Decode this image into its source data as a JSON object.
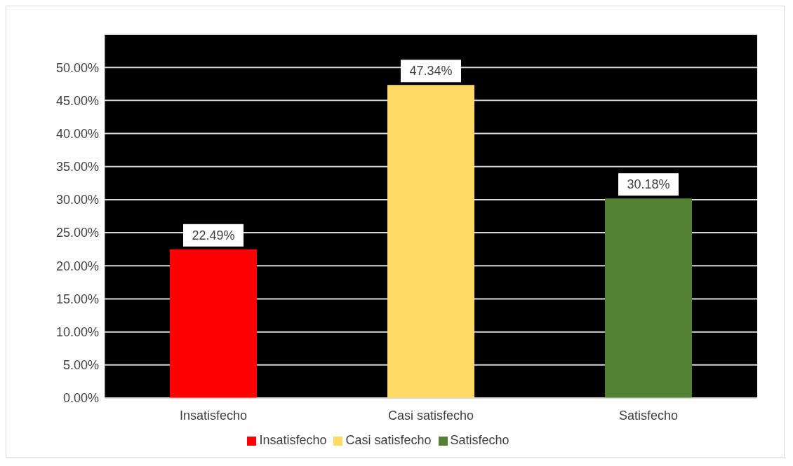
{
  "chart_data": {
    "type": "bar",
    "categories": [
      "Insatisfecho",
      "Casi satisfecho",
      "Satisfecho"
    ],
    "series": [
      {
        "name": "Insatisfecho",
        "color": "#ff0000",
        "values": [
          22.49,
          null,
          null
        ],
        "value_labels": [
          "22.49%",
          null,
          null
        ]
      },
      {
        "name": "Casi satisfecho",
        "color": "#ffd966",
        "values": [
          null,
          47.34,
          null
        ],
        "value_labels": [
          null,
          "47.34%",
          null
        ]
      },
      {
        "name": "Satisfecho",
        "color": "#548235",
        "values": [
          null,
          null,
          30.18
        ],
        "value_labels": [
          null,
          null,
          "30.18%"
        ]
      }
    ],
    "ylim": [
      0,
      55
    ],
    "yticks": [
      {
        "value": 0,
        "label": "0.00%"
      },
      {
        "value": 5,
        "label": "5.00%"
      },
      {
        "value": 10,
        "label": "10.00%"
      },
      {
        "value": 15,
        "label": "15.00%"
      },
      {
        "value": 20,
        "label": "20.00%"
      },
      {
        "value": 25,
        "label": "25.00%"
      },
      {
        "value": 30,
        "label": "30.00%"
      },
      {
        "value": 35,
        "label": "35.00%"
      },
      {
        "value": 40,
        "label": "40.00%"
      },
      {
        "value": 45,
        "label": "45.00%"
      },
      {
        "value": 50,
        "label": "50.00%"
      },
      {
        "value": 55,
        "label": null
      }
    ],
    "grid": "y",
    "legend": "bottom"
  }
}
